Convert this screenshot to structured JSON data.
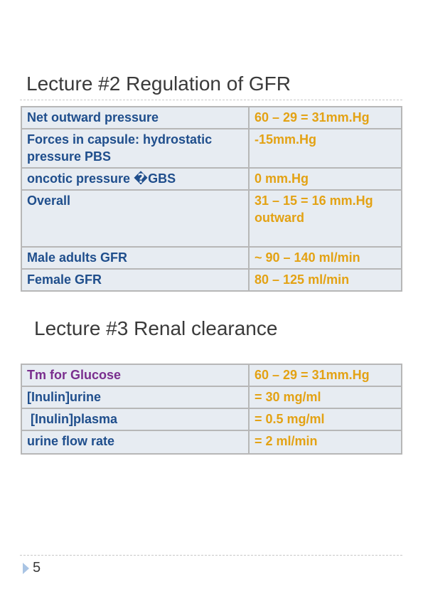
{
  "lecture2": {
    "title": "Lecture #2 Regulation of GFR",
    "rows": [
      {
        "label": "Net outward pressure",
        "value": "60 – 29 = 31mm.Hg"
      },
      {
        "label": "Forces in capsule: hydrostatic pressure PBS",
        "value": "-15mm.Hg"
      },
      {
        "label": "oncotic pressure �GBS",
        "value": "0 mm.Hg"
      },
      {
        "label": "Overall",
        "value": "31 – 15 = 16 mm.Hg outward"
      },
      {
        "label": "Male adults GFR",
        "value": "~ 90 – 140 ml/min"
      },
      {
        "label": "Female GFR",
        "value": "80 – 125 ml/min"
      }
    ]
  },
  "lecture3": {
    "title": "Lecture #3 Renal clearance",
    "rows": [
      {
        "label": "Tm for Glucose",
        "value": "60 – 29 = 31mm.Hg"
      },
      {
        "label": "[Inulin]urine",
        "value": "= 30 mg/ml"
      },
      {
        "label": " [Inulin]plasma",
        "value": "= 0.5 mg/ml"
      },
      {
        "label": "urine flow rate",
        "value": "= 2 ml/min"
      }
    ]
  },
  "footer": {
    "page_number": "5"
  },
  "colors": {
    "label_blue": "#1f4e8c",
    "value_gold": "#e3a214",
    "label_purple": "#7a2e8e",
    "cell_bg": "#e7ecf2"
  }
}
